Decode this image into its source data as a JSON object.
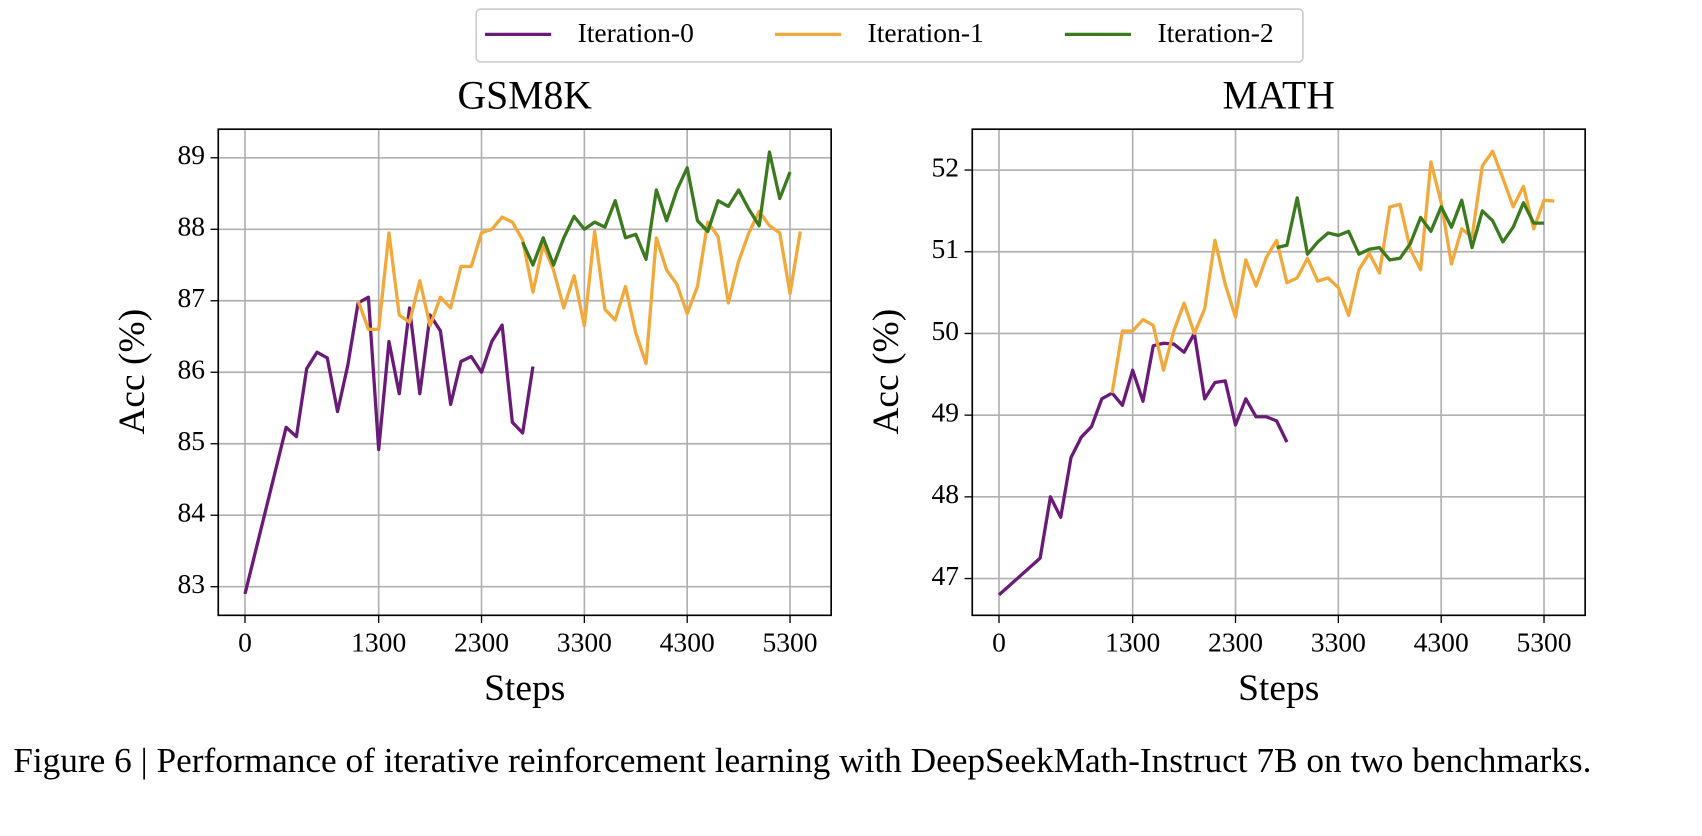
{
  "legend": {
    "corner": "top-center"
  },
  "caption": "Figure 6 | Performance of iterative reinforcement learning with DeepSeekMath-Instruct 7B on two benchmarks.",
  "chart_data": [
    {
      "type": "line",
      "title": "GSM8K",
      "xlabel": "Steps",
      "ylabel": "Acc (%)",
      "grid": true,
      "xlim": [
        -260,
        5700
      ],
      "xticks": [
        0,
        1300,
        2300,
        3300,
        4300,
        5300
      ],
      "ylim": [
        82.6,
        89.4
      ],
      "yticks": [
        83,
        84,
        85,
        86,
        87,
        88,
        89
      ],
      "series": [
        {
          "name": "Iteration-0",
          "color": "#6a1b78",
          "x": [
            0,
            400,
            500,
            600,
            700,
            800,
            900,
            1000,
            1100,
            1200,
            1300,
            1400,
            1500,
            1600,
            1700,
            1800,
            1900,
            2000,
            2100,
            2200,
            2300,
            2400,
            2500,
            2600,
            2700,
            2800
          ],
          "values": [
            82.9,
            85.23,
            85.1,
            86.05,
            86.28,
            86.2,
            85.45,
            86.1,
            86.97,
            87.05,
            84.92,
            86.43,
            85.7,
            86.9,
            85.7,
            86.8,
            86.58,
            85.55,
            86.15,
            86.22,
            86.0,
            86.43,
            86.66,
            85.3,
            85.15,
            86.08
          ]
        },
        {
          "name": "Iteration-1",
          "color": "#f2a93b",
          "x": [
            1100,
            1200,
            1300,
            1400,
            1500,
            1600,
            1700,
            1800,
            1900,
            2000,
            2100,
            2200,
            2300,
            2400,
            2500,
            2600,
            2700,
            2800,
            2900,
            3000,
            3100,
            3200,
            3300,
            3400,
            3500,
            3600,
            3700,
            3800,
            3900,
            4000,
            4100,
            4200,
            4300,
            4400,
            4500,
            4600,
            4700,
            4800,
            4900,
            5000,
            5100,
            5200,
            5300,
            5400
          ],
          "values": [
            87.0,
            86.6,
            86.6,
            87.95,
            86.8,
            86.7,
            87.28,
            86.65,
            87.05,
            86.9,
            87.48,
            87.48,
            87.95,
            88.0,
            88.17,
            88.1,
            87.85,
            87.12,
            87.78,
            87.43,
            86.9,
            87.35,
            86.65,
            87.97,
            86.88,
            86.73,
            87.2,
            86.55,
            86.12,
            87.88,
            87.43,
            87.23,
            86.82,
            87.2,
            88.1,
            87.9,
            86.97,
            87.55,
            87.95,
            88.25,
            88.05,
            87.95,
            87.1,
            87.97
          ]
        },
        {
          "name": "Iteration-2",
          "color": "#3b7a1e",
          "x": [
            2700,
            2800,
            2900,
            3000,
            3100,
            3200,
            3300,
            3400,
            3500,
            3600,
            3700,
            3800,
            3900,
            4000,
            4100,
            4200,
            4300,
            4400,
            4500,
            4600,
            4700,
            4800,
            4900,
            5000,
            5100,
            5200,
            5300
          ],
          "values": [
            87.82,
            87.5,
            87.88,
            87.5,
            87.88,
            88.18,
            88.0,
            88.1,
            88.03,
            88.4,
            87.88,
            87.93,
            87.58,
            88.55,
            88.12,
            88.55,
            88.86,
            88.12,
            87.97,
            88.4,
            88.32,
            88.55,
            88.28,
            88.05,
            89.08,
            88.43,
            88.8
          ]
        }
      ]
    },
    {
      "type": "line",
      "title": "MATH",
      "xlabel": "Steps",
      "ylabel": "Acc (%)",
      "grid": true,
      "xlim": [
        -260,
        5700
      ],
      "xticks": [
        0,
        1300,
        2300,
        3300,
        4300,
        5300
      ],
      "ylim": [
        46.55,
        52.5
      ],
      "yticks": [
        47,
        48,
        49,
        50,
        51,
        52
      ],
      "series": [
        {
          "color": "#6a1b78",
          "x": [
            0,
            400,
            500,
            600,
            700,
            800,
            900,
            1000,
            1100,
            1200,
            1300,
            1400,
            1500,
            1600,
            1700,
            1800,
            1900,
            2000,
            2100,
            2200,
            2300,
            2400,
            2500,
            2600,
            2700,
            2800
          ],
          "values": [
            46.8,
            47.25,
            48.0,
            47.75,
            48.48,
            48.73,
            48.86,
            49.2,
            49.27,
            49.12,
            49.55,
            49.17,
            49.85,
            49.88,
            49.87,
            49.77,
            50.0,
            49.2,
            49.4,
            49.42,
            48.88,
            49.2,
            48.98,
            48.98,
            48.93,
            48.67
          ]
        },
        {
          "color": "#f2a93b",
          "x": [
            1100,
            1200,
            1300,
            1400,
            1500,
            1600,
            1700,
            1800,
            1900,
            2000,
            2100,
            2200,
            2300,
            2400,
            2500,
            2600,
            2700,
            2800,
            2900,
            3000,
            3100,
            3200,
            3300,
            3400,
            3500,
            3600,
            3700,
            3800,
            3900,
            4000,
            4100,
            4200,
            4300,
            4400,
            4500,
            4600,
            4700,
            4800,
            4900,
            5000,
            5100,
            5200,
            5300,
            5400
          ],
          "values": [
            49.27,
            50.03,
            50.03,
            50.17,
            50.1,
            49.55,
            50.03,
            50.37,
            50.0,
            50.3,
            51.14,
            50.6,
            50.2,
            50.9,
            50.58,
            50.93,
            51.14,
            50.62,
            50.68,
            50.92,
            50.64,
            50.68,
            50.56,
            50.22,
            50.78,
            50.98,
            50.74,
            51.55,
            51.58,
            51.03,
            50.78,
            52.1,
            51.6,
            50.85,
            51.28,
            51.18,
            52.05,
            52.23,
            51.9,
            51.55,
            51.8,
            51.28,
            51.63,
            51.62
          ]
        },
        {
          "color": "#3b7a1e",
          "x": [
            2700,
            2800,
            2900,
            3000,
            3100,
            3200,
            3300,
            3400,
            3500,
            3600,
            3700,
            3800,
            3900,
            4000,
            4100,
            4200,
            4300,
            4400,
            4500,
            4600,
            4700,
            4800,
            4900,
            5000,
            5100,
            5200,
            5300
          ],
          "values": [
            51.05,
            51.08,
            51.66,
            50.97,
            51.12,
            51.23,
            51.2,
            51.25,
            50.97,
            51.03,
            51.05,
            50.9,
            50.92,
            51.1,
            51.42,
            51.25,
            51.55,
            51.3,
            51.63,
            51.05,
            51.5,
            51.38,
            51.12,
            51.3,
            51.6,
            51.35,
            51.35
          ]
        }
      ]
    }
  ]
}
